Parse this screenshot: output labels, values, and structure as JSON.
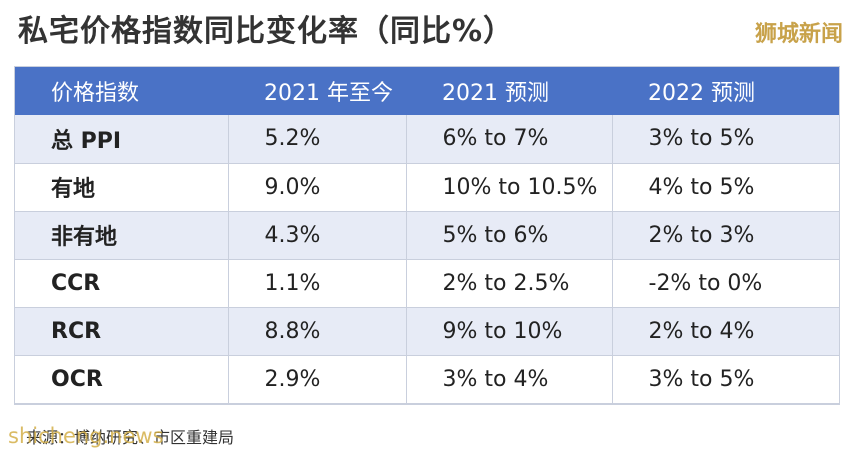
{
  "title": "私宅价格指数同比变化率（同比%）",
  "brand": "狮城新闻",
  "table": {
    "headers": [
      "价格指数",
      "2021 年至今",
      "2021 预测",
      "2022 预测"
    ],
    "rows": [
      [
        "总 PPI",
        "5.2%",
        "6% to 7%",
        "3% to 5%"
      ],
      [
        "有地",
        "9.0%",
        "10% to 10.5%",
        "4% to 5%"
      ],
      [
        "非有地",
        "4.3%",
        "5% to 6%",
        "2% to 3%"
      ],
      [
        "CCR",
        "1.1%",
        "2% to 2.5%",
        "-2% to 0%"
      ],
      [
        "RCR",
        "8.8%",
        "9% to 10%",
        "2% to 4%"
      ],
      [
        "OCR",
        "2.9%",
        "3% to 4%",
        "3% to 5%"
      ]
    ]
  },
  "source": "来源：博纳研究、市区重建局",
  "watermark": "shicheng.news",
  "colors": {
    "header_bg": "#4a72c6",
    "row_shade": "#e7ebf6",
    "brand": "#c8a24a"
  }
}
